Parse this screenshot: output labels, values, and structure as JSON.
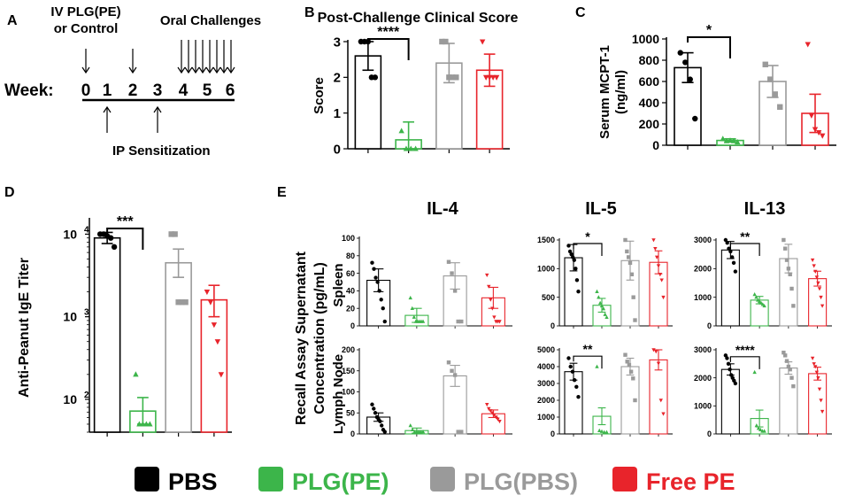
{
  "colors": {
    "pbs": "#000000",
    "plgpe": "#3cb54a",
    "plgpbs": "#9a9a9a",
    "freepe": "#e8242b"
  },
  "panelA": {
    "letter": "A",
    "iv_label_line1": "IV PLG(PE)",
    "iv_label_line2": "or Control",
    "oral_label": "Oral Challenges",
    "week_label": "Week:",
    "weeks": [
      "0",
      "1",
      "2",
      "3",
      "4",
      "5",
      "6"
    ],
    "ip_label": "IP Sensitization"
  },
  "legend": {
    "items": [
      {
        "label": "PBS",
        "color": "#000000"
      },
      {
        "label": "PLG(PE)",
        "color": "#3cb54a"
      },
      {
        "label": "PLG(PBS)",
        "color": "#9a9a9a"
      },
      {
        "label": "Free PE",
        "color": "#e8242b"
      }
    ]
  },
  "panel_letters": {
    "B": "B",
    "C": "C",
    "D": "D",
    "E": "E"
  },
  "panelE": {
    "col_titles": [
      "IL-4",
      "IL-5",
      "IL-13"
    ],
    "row_labels": [
      "Spleen",
      "Lymph Node"
    ],
    "ylabel_line1": "Recall Assay Supernatant",
    "ylabel_line2": "Concentration (pg/mL)"
  },
  "chart_data": [
    {
      "id": "B",
      "type": "bar",
      "title": "Post-Challenge Clinical Score",
      "ylabel": "Score",
      "categories": [
        "PBS",
        "PLG(PE)",
        "PLG(PBS)",
        "Free PE"
      ],
      "values": [
        2.6,
        0.25,
        2.4,
        2.2
      ],
      "errors": [
        0.4,
        0.5,
        0.55,
        0.45
      ],
      "ylim": [
        0,
        3
      ],
      "yticks": [
        0,
        1,
        2,
        3
      ],
      "ytick_labels": [
        "0",
        "1",
        "2",
        "3"
      ],
      "points": [
        [
          3,
          3,
          3,
          2,
          2
        ],
        [
          0.5,
          0,
          0,
          0
        ],
        [
          3,
          3,
          2,
          2,
          2
        ],
        [
          3,
          2,
          2,
          2,
          2
        ]
      ],
      "sig": "****",
      "sig_pair": [
        0,
        1
      ]
    },
    {
      "id": "C",
      "type": "bar",
      "ylabel_line1": "Serum MCPT-1",
      "ylabel_line2": "(ng/ml)",
      "categories": [
        "PBS",
        "PLG(PE)",
        "PLG(PBS)",
        "Free PE"
      ],
      "values": [
        730,
        45,
        600,
        300
      ],
      "errors": [
        140,
        15,
        150,
        180
      ],
      "ylim": [
        0,
        1000
      ],
      "yticks": [
        0,
        200,
        400,
        600,
        800,
        1000
      ],
      "ytick_labels": [
        "0",
        "200",
        "400",
        "600",
        "800",
        "1000"
      ],
      "points": [
        [
          870,
          780,
          620,
          250
        ],
        [
          60,
          40,
          45,
          40,
          30
        ],
        [
          760,
          620,
          480,
          360
        ],
        [
          950,
          280,
          150,
          120,
          90
        ]
      ],
      "sig": "*",
      "sig_pair": [
        0,
        1
      ]
    },
    {
      "id": "D",
      "type": "bar",
      "yscale": "log",
      "ylabel": "Anti-Peanut  IgE Titer",
      "categories": [
        "PBS",
        "PLG(PE)",
        "PLG(PBS)",
        "Free PE"
      ],
      "values": [
        9000,
        72,
        4500,
        1600
      ],
      "errors_upper": [
        10500,
        105,
        6600,
        2400
      ],
      "errors_lower": [
        7700,
        50,
        3000,
        1000
      ],
      "ylim": [
        40,
        15000
      ],
      "yticks": [
        100,
        1000,
        10000
      ],
      "ytick_labels": [
        "10",
        "10",
        "10"
      ],
      "ytick_exps": [
        "2",
        "3",
        "4"
      ],
      "points": [
        [
          10000,
          10000,
          9500,
          9000,
          7000
        ],
        [
          200,
          50,
          50,
          50,
          50
        ],
        [
          10000,
          10000,
          1500,
          1500,
          1500
        ],
        [
          2000,
          1500,
          800,
          500,
          200
        ]
      ],
      "sig": "***",
      "sig_pair": [
        0,
        1
      ]
    },
    {
      "id": "E-IL4-Spleen",
      "type": "bar",
      "categories": [
        "PBS",
        "PLG(PE)",
        "PLG(PBS)",
        "Free PE"
      ],
      "values": [
        52,
        12,
        57,
        32
      ],
      "errors": [
        13,
        8,
        15,
        12
      ],
      "ylim": [
        0,
        100
      ],
      "yticks": [
        0,
        20,
        40,
        60,
        80,
        100
      ],
      "ytick_labels": [
        "0",
        "20",
        "40",
        "60",
        "80",
        "100"
      ],
      "points": [
        [
          72,
          65,
          55,
          50,
          40,
          30,
          20,
          5
        ],
        [
          32,
          20,
          10,
          5,
          5,
          5,
          5,
          5
        ],
        [
          73,
          60,
          40,
          5,
          5
        ],
        [
          58,
          45,
          30,
          20,
          10,
          5,
          5,
          5
        ]
      ]
    },
    {
      "id": "E-IL5-Spleen",
      "type": "bar",
      "categories": [
        "PBS",
        "PLG(PE)",
        "PLG(PBS)",
        "Free PE"
      ],
      "values": [
        1190,
        360,
        1140,
        1110
      ],
      "errors": [
        230,
        120,
        340,
        200
      ],
      "ylim": [
        0,
        1500
      ],
      "yticks": [
        0,
        500,
        1000,
        1500
      ],
      "ytick_labels": [
        "0",
        "500",
        "1000",
        "1500"
      ],
      "points": [
        [
          1400,
          1300,
          1250,
          1200,
          1150,
          1000,
          800,
          600
        ],
        [
          600,
          500,
          400,
          350,
          300,
          200,
          150
        ],
        [
          1500,
          1300,
          1200,
          1100,
          900,
          500,
          100
        ],
        [
          1500,
          1350,
          1200,
          1050,
          900,
          800,
          500
        ]
      ],
      "sig": "*",
      "sig_pair": [
        0,
        1
      ]
    },
    {
      "id": "E-IL13-Spleen",
      "type": "bar",
      "categories": [
        "PBS",
        "PLG(PE)",
        "PLG(PBS)",
        "Free PE"
      ],
      "values": [
        2650,
        900,
        2350,
        1650
      ],
      "errors": [
        300,
        130,
        500,
        260
      ],
      "ylim": [
        0,
        3000
      ],
      "yticks": [
        0,
        1000,
        2000,
        3000
      ],
      "ytick_labels": [
        "0",
        "1000",
        "2000",
        "3000"
      ],
      "points": [
        [
          3000,
          2900,
          2700,
          2600,
          2400,
          2200,
          1900
        ],
        [
          1100,
          1000,
          900,
          850,
          800,
          750,
          700
        ],
        [
          3000,
          2700,
          2300,
          2000,
          1800,
          1300,
          700
        ],
        [
          2300,
          2100,
          1900,
          1700,
          1500,
          1300,
          1000,
          700
        ]
      ],
      "sig": "**",
      "sig_pair": [
        0,
        1
      ]
    },
    {
      "id": "E-IL4-LymphNode",
      "type": "bar",
      "categories": [
        "PBS",
        "PLG(PE)",
        "PLG(PBS)",
        "Free PE"
      ],
      "values": [
        40,
        8,
        138,
        48
      ],
      "errors": [
        10,
        6,
        25,
        9
      ],
      "ylim": [
        0,
        200
      ],
      "yticks": [
        0,
        50,
        100,
        150,
        200
      ],
      "ytick_labels": [
        "0",
        "50",
        "100",
        "150",
        "200"
      ],
      "points": [
        [
          70,
          60,
          50,
          40,
          35,
          30,
          20,
          10,
          5
        ],
        [
          20,
          10,
          5,
          5,
          5,
          5,
          5
        ],
        [
          170,
          150,
          140,
          5,
          5
        ],
        [
          70,
          60,
          55,
          50,
          45,
          40,
          35,
          30
        ]
      ]
    },
    {
      "id": "E-IL5-LymphNode",
      "type": "bar",
      "categories": [
        "PBS",
        "PLG(PE)",
        "PLG(PBS)",
        "Free PE"
      ],
      "values": [
        3700,
        1050,
        4000,
        4400
      ],
      "errors": [
        500,
        500,
        500,
        600
      ],
      "ylim": [
        0,
        5000
      ],
      "yticks": [
        0,
        1000,
        2000,
        3000,
        4000,
        5000
      ],
      "ytick_labels": [
        "0",
        "1000",
        "2000",
        "3000",
        "4000",
        "5000"
      ],
      "points": [
        [
          4500,
          4000,
          3700,
          3200,
          2800,
          2200
        ],
        [
          4000,
          200,
          150,
          100,
          100
        ],
        [
          4700,
          4300,
          4100,
          3700,
          3300,
          2000
        ],
        [
          5000,
          4900,
          4200,
          2000,
          1200
        ]
      ],
      "sig": "**",
      "sig_pair": [
        0,
        1
      ]
    },
    {
      "id": "E-IL13-LymphNode",
      "type": "bar",
      "categories": [
        "PBS",
        "PLG(PE)",
        "PLG(PBS)",
        "Free PE"
      ],
      "values": [
        2300,
        550,
        2350,
        2150
      ],
      "errors": [
        200,
        300,
        220,
        230
      ],
      "ylim": [
        0,
        3000
      ],
      "yticks": [
        0,
        1000,
        2000,
        3000
      ],
      "ytick_labels": [
        "0",
        "1000",
        "2000",
        "3000"
      ],
      "points": [
        [
          2800,
          2700,
          2500,
          2300,
          2100,
          2000,
          1900,
          1800
        ],
        [
          2200,
          300,
          200,
          150,
          100,
          100
        ],
        [
          2900,
          2800,
          2600,
          2400,
          2300,
          2000,
          1700
        ],
        [
          2700,
          2500,
          2400,
          2200,
          2000,
          1600,
          1200,
          800
        ]
      ],
      "sig": "****",
      "sig_pair": [
        0,
        1
      ]
    }
  ]
}
